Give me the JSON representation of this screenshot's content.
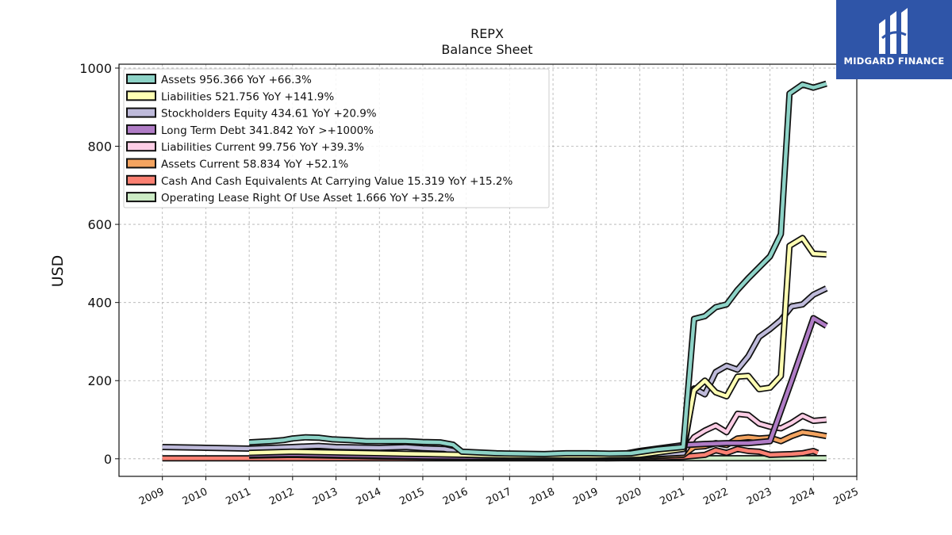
{
  "brand": {
    "name": "MIDGARD FINANCE",
    "bg": "#2f55a8"
  },
  "chart_data": {
    "type": "line",
    "title": "REPX",
    "subtitle": "Balance  Sheet",
    "ylabel": "USD",
    "xlabel": "",
    "ylim": [
      -45,
      1010
    ],
    "xlim": [
      2008.0,
      2025.0
    ],
    "yticks": [
      0,
      200,
      400,
      600,
      800,
      1000
    ],
    "xticks": [
      "2009",
      "2010",
      "2011",
      "2012",
      "2013",
      "2014",
      "2015",
      "2016",
      "2017",
      "2018",
      "2019",
      "2020",
      "2021",
      "2022",
      "2023",
      "2024",
      "2025"
    ],
    "grid": true,
    "legend_position": "top-left",
    "series": [
      {
        "name": "Assets",
        "legend": "Assets  956.366 YoY +66.3%",
        "color": "#8dd3c7",
        "points": [
          [
            2011.0,
            42
          ],
          [
            2011.5,
            45
          ],
          [
            2011.8,
            48
          ],
          [
            2012.0,
            52
          ],
          [
            2012.3,
            55
          ],
          [
            2012.6,
            54
          ],
          [
            2012.9,
            50
          ],
          [
            2013.3,
            48
          ],
          [
            2013.7,
            45
          ],
          [
            2014.0,
            45
          ],
          [
            2014.6,
            45
          ],
          [
            2015.0,
            43
          ],
          [
            2015.4,
            42
          ],
          [
            2015.7,
            36
          ],
          [
            2015.9,
            18
          ],
          [
            2016.3,
            16
          ],
          [
            2016.7,
            14
          ],
          [
            2017.2,
            13
          ],
          [
            2017.8,
            12
          ],
          [
            2018.3,
            14
          ],
          [
            2018.8,
            14
          ],
          [
            2019.3,
            13
          ],
          [
            2019.8,
            14
          ],
          [
            2020.4,
            24
          ],
          [
            2021.0,
            30
          ],
          [
            2021.25,
            358
          ],
          [
            2021.5,
            365
          ],
          [
            2021.75,
            388
          ],
          [
            2022.0,
            395
          ],
          [
            2022.25,
            432
          ],
          [
            2022.5,
            462
          ],
          [
            2022.75,
            490
          ],
          [
            2023.0,
            518
          ],
          [
            2023.25,
            575
          ],
          [
            2023.45,
            935
          ],
          [
            2023.75,
            958
          ],
          [
            2024.0,
            950
          ],
          [
            2024.3,
            960
          ]
        ]
      },
      {
        "name": "Liabilities",
        "legend": "Liabilities  521.756 YoY +141.9%",
        "color": "#ffffb3",
        "points": [
          [
            2011.0,
            15
          ],
          [
            2012.0,
            18
          ],
          [
            2013.0,
            16
          ],
          [
            2014.0,
            14
          ],
          [
            2015.0,
            12
          ],
          [
            2016.0,
            10
          ],
          [
            2017.0,
            8
          ],
          [
            2018.0,
            8
          ],
          [
            2019.0,
            8
          ],
          [
            2020.0,
            10
          ],
          [
            2021.0,
            25
          ],
          [
            2021.25,
            175
          ],
          [
            2021.5,
            200
          ],
          [
            2021.75,
            170
          ],
          [
            2022.0,
            160
          ],
          [
            2022.25,
            210
          ],
          [
            2022.5,
            212
          ],
          [
            2022.75,
            178
          ],
          [
            2023.0,
            182
          ],
          [
            2023.25,
            212
          ],
          [
            2023.45,
            545
          ],
          [
            2023.75,
            565
          ],
          [
            2024.0,
            525
          ],
          [
            2024.3,
            523
          ]
        ]
      },
      {
        "name": "Stockholders Equity",
        "legend": "Stockholders Equity  434.61 YoY +20.9%",
        "color": "#bebada",
        "points": [
          [
            2009.0,
            30
          ],
          [
            2010.0,
            28
          ],
          [
            2011.0,
            26
          ],
          [
            2012.0,
            30
          ],
          [
            2012.6,
            33
          ],
          [
            2013.0,
            30
          ],
          [
            2014.0,
            28
          ],
          [
            2014.6,
            30
          ],
          [
            2015.0,
            27
          ],
          [
            2015.5,
            25
          ],
          [
            2015.8,
            18
          ],
          [
            2016.0,
            10
          ],
          [
            2017.0,
            8
          ],
          [
            2018.0,
            8
          ],
          [
            2019.0,
            8
          ],
          [
            2020.0,
            10
          ],
          [
            2021.0,
            15
          ],
          [
            2021.25,
            180
          ],
          [
            2021.5,
            165
          ],
          [
            2021.75,
            222
          ],
          [
            2022.0,
            238
          ],
          [
            2022.25,
            228
          ],
          [
            2022.5,
            262
          ],
          [
            2022.75,
            312
          ],
          [
            2023.0,
            332
          ],
          [
            2023.25,
            355
          ],
          [
            2023.5,
            390
          ],
          [
            2023.75,
            395
          ],
          [
            2024.0,
            420
          ],
          [
            2024.3,
            436
          ]
        ]
      },
      {
        "name": "Long Term Debt",
        "legend": "Long Term Debt  341.842 YoY >+1000%",
        "color": "#b07cc6",
        "points": [
          [
            2011.0,
            10
          ],
          [
            2012.0,
            12
          ],
          [
            2013.0,
            10
          ],
          [
            2014.0,
            8
          ],
          [
            2015.0,
            6
          ],
          [
            2016.0,
            5
          ],
          [
            2017.0,
            5
          ],
          [
            2018.0,
            5
          ],
          [
            2019.0,
            6
          ],
          [
            2019.5,
            10
          ],
          [
            2020.0,
            20
          ],
          [
            2021.0,
            35
          ],
          [
            2021.5,
            38
          ],
          [
            2022.0,
            40
          ],
          [
            2022.5,
            40
          ],
          [
            2023.0,
            45
          ],
          [
            2023.5,
            200
          ],
          [
            2024.0,
            360
          ],
          [
            2024.3,
            340
          ]
        ]
      },
      {
        "name": "Liabilities Current",
        "legend": "Liabilities Current  99.756 YoY +39.3%",
        "color": "#fccde5",
        "points": [
          [
            2011.0,
            12
          ],
          [
            2012.0,
            14
          ],
          [
            2013.0,
            12
          ],
          [
            2014.0,
            10
          ],
          [
            2015.0,
            8
          ],
          [
            2016.0,
            6
          ],
          [
            2017.0,
            6
          ],
          [
            2018.0,
            6
          ],
          [
            2019.0,
            6
          ],
          [
            2020.0,
            8
          ],
          [
            2021.0,
            15
          ],
          [
            2021.25,
            55
          ],
          [
            2021.5,
            72
          ],
          [
            2021.75,
            85
          ],
          [
            2022.0,
            68
          ],
          [
            2022.25,
            115
          ],
          [
            2022.5,
            112
          ],
          [
            2022.75,
            90
          ],
          [
            2023.0,
            82
          ],
          [
            2023.25,
            78
          ],
          [
            2023.5,
            92
          ],
          [
            2023.75,
            110
          ],
          [
            2024.0,
            97
          ],
          [
            2024.3,
            100
          ]
        ]
      },
      {
        "name": "Assets Current",
        "legend": "Assets Current  58.834 YoY +52.1%",
        "color": "#f4a460",
        "points": [
          [
            2011.0,
            8
          ],
          [
            2012.0,
            10
          ],
          [
            2013.0,
            8
          ],
          [
            2014.0,
            6
          ],
          [
            2015.0,
            5
          ],
          [
            2016.0,
            4
          ],
          [
            2017.0,
            4
          ],
          [
            2018.0,
            4
          ],
          [
            2019.0,
            4
          ],
          [
            2020.0,
            5
          ],
          [
            2021.0,
            10
          ],
          [
            2021.25,
            30
          ],
          [
            2021.5,
            32
          ],
          [
            2021.75,
            40
          ],
          [
            2022.0,
            35
          ],
          [
            2022.25,
            52
          ],
          [
            2022.5,
            55
          ],
          [
            2022.75,
            52
          ],
          [
            2023.0,
            54
          ],
          [
            2023.25,
            45
          ],
          [
            2023.5,
            58
          ],
          [
            2023.75,
            68
          ],
          [
            2024.0,
            64
          ],
          [
            2024.3,
            58
          ]
        ]
      },
      {
        "name": "Cash And Cash Equivalents At Carrying Value",
        "legend": "Cash And Cash Equivalents At Carrying Value  15.319 YoY +15.2%",
        "color": "#fb8072",
        "points": [
          [
            2009.0,
            1
          ],
          [
            2010.0,
            1
          ],
          [
            2011.0,
            1
          ],
          [
            2012.0,
            1
          ],
          [
            2013.0,
            1
          ],
          [
            2014.0,
            1
          ],
          [
            2015.0,
            1
          ],
          [
            2016.0,
            1
          ],
          [
            2017.0,
            1
          ],
          [
            2018.0,
            1
          ],
          [
            2019.0,
            1
          ],
          [
            2020.0,
            2
          ],
          [
            2021.0,
            5
          ],
          [
            2021.5,
            10
          ],
          [
            2021.75,
            22
          ],
          [
            2022.0,
            15
          ],
          [
            2022.25,
            25
          ],
          [
            2022.5,
            20
          ],
          [
            2022.75,
            18
          ],
          [
            2023.0,
            10
          ],
          [
            2023.5,
            12
          ],
          [
            2023.75,
            14
          ],
          [
            2024.0,
            20
          ],
          [
            2024.1,
            15
          ]
        ]
      },
      {
        "name": "Operating Lease Right Of Use Asset",
        "legend": "Operating Lease Right Of Use Asset  1.666 YoY +35.2%",
        "color": "#ccebc5",
        "points": [
          [
            2019.2,
            1.5
          ],
          [
            2020.0,
            1.5
          ],
          [
            2021.0,
            1.5
          ],
          [
            2022.0,
            1.5
          ],
          [
            2023.0,
            1.5
          ],
          [
            2024.0,
            1.6
          ],
          [
            2024.3,
            1.7
          ]
        ]
      }
    ]
  }
}
